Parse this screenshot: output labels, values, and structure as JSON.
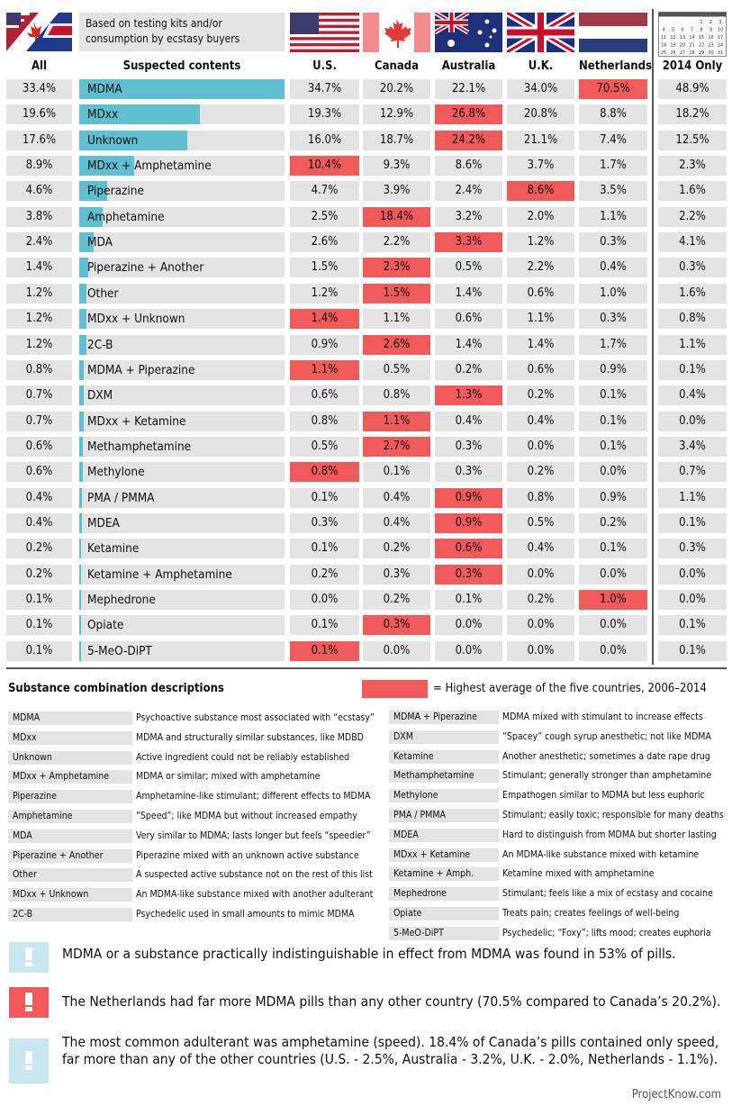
{
  "header": {
    "note": "Based on testing kits and/or consumption by ecstasy buyers",
    "col_all": "All",
    "col_contents": "Suspected contents",
    "col_2014": "2014 Only",
    "countries": [
      "U.S.",
      "Canada",
      "Australia",
      "U.K.",
      "Netherlands"
    ]
  },
  "chart_data": {
    "type": "table",
    "columns": [
      "All",
      "Suspected contents",
      "U.S.",
      "Canada",
      "Australia",
      "U.K.",
      "Netherlands",
      "2014 Only"
    ],
    "rows": [
      {
        "name": "MDMA",
        "all": 33.4,
        "us": 34.7,
        "ca": 20.2,
        "au": 22.1,
        "uk": 34.0,
        "nl": 70.5,
        "y2014": 48.9,
        "highest": "nl"
      },
      {
        "name": "MDxx",
        "all": 19.6,
        "us": 19.3,
        "ca": 12.9,
        "au": 26.8,
        "uk": 20.8,
        "nl": 8.8,
        "y2014": 18.2,
        "highest": "au"
      },
      {
        "name": "Unknown",
        "all": 17.6,
        "us": 16.0,
        "ca": 18.7,
        "au": 24.2,
        "uk": 21.1,
        "nl": 7.4,
        "y2014": 12.5,
        "highest": "au"
      },
      {
        "name": "MDxx + Amphetamine",
        "all": 8.9,
        "us": 10.4,
        "ca": 9.3,
        "au": 8.6,
        "uk": 3.7,
        "nl": 1.7,
        "y2014": 2.3,
        "highest": "us"
      },
      {
        "name": "Piperazine",
        "all": 4.6,
        "us": 4.7,
        "ca": 3.9,
        "au": 2.4,
        "uk": 8.6,
        "nl": 3.5,
        "y2014": 1.6,
        "highest": "uk"
      },
      {
        "name": "Amphetamine",
        "all": 3.8,
        "us": 2.5,
        "ca": 18.4,
        "au": 3.2,
        "uk": 2.0,
        "nl": 1.1,
        "y2014": 2.2,
        "highest": "ca"
      },
      {
        "name": "MDA",
        "all": 2.4,
        "us": 2.6,
        "ca": 2.2,
        "au": 3.3,
        "uk": 1.2,
        "nl": 0.3,
        "y2014": 4.1,
        "highest": "au"
      },
      {
        "name": "Piperazine + Another",
        "all": 1.4,
        "us": 1.5,
        "ca": 2.3,
        "au": 0.5,
        "uk": 2.2,
        "nl": 0.4,
        "y2014": 0.3,
        "highest": "ca"
      },
      {
        "name": "Other",
        "all": 1.2,
        "us": 1.2,
        "ca": 1.5,
        "au": 1.4,
        "uk": 0.6,
        "nl": 1.0,
        "y2014": 1.6,
        "highest": "ca"
      },
      {
        "name": "MDxx + Unknown",
        "all": 1.2,
        "us": 1.4,
        "ca": 1.1,
        "au": 0.6,
        "uk": 1.1,
        "nl": 0.3,
        "y2014": 0.8,
        "highest": "us"
      },
      {
        "name": "2C-B",
        "all": 1.2,
        "us": 0.9,
        "ca": 2.6,
        "au": 1.4,
        "uk": 1.4,
        "nl": 1.7,
        "y2014": 1.1,
        "highest": "ca"
      },
      {
        "name": "MDMA + Piperazine",
        "all": 0.8,
        "us": 1.1,
        "ca": 0.5,
        "au": 0.2,
        "uk": 0.6,
        "nl": 0.9,
        "y2014": 0.1,
        "highest": "us"
      },
      {
        "name": "DXM",
        "all": 0.7,
        "us": 0.6,
        "ca": 0.8,
        "au": 1.3,
        "uk": 0.2,
        "nl": 0.1,
        "y2014": 0.4,
        "highest": "au"
      },
      {
        "name": "MDxx + Ketamine",
        "all": 0.7,
        "us": 0.8,
        "ca": 1.1,
        "au": 0.4,
        "uk": 0.4,
        "nl": 0.1,
        "y2014": 0.0,
        "highest": "ca"
      },
      {
        "name": "Methamphetamine",
        "all": 0.6,
        "us": 0.5,
        "ca": 2.7,
        "au": 0.3,
        "uk": 0.0,
        "nl": 0.1,
        "y2014": 3.4,
        "highest": "ca"
      },
      {
        "name": "Methylone",
        "all": 0.6,
        "us": 0.8,
        "ca": 0.1,
        "au": 0.3,
        "uk": 0.2,
        "nl": 0.0,
        "y2014": 0.7,
        "highest": "us"
      },
      {
        "name": "PMA / PMMA",
        "all": 0.4,
        "us": 0.1,
        "ca": 0.4,
        "au": 0.9,
        "uk": 0.8,
        "nl": 0.9,
        "y2014": 1.1,
        "highest": "au"
      },
      {
        "name": "MDEA",
        "all": 0.4,
        "us": 0.3,
        "ca": 0.4,
        "au": 0.9,
        "uk": 0.5,
        "nl": 0.2,
        "y2014": 0.1,
        "highest": "au"
      },
      {
        "name": "Ketamine",
        "all": 0.2,
        "us": 0.1,
        "ca": 0.2,
        "au": 0.6,
        "uk": 0.4,
        "nl": 0.1,
        "y2014": 0.3,
        "highest": "au"
      },
      {
        "name": "Ketamine + Amphetamine",
        "all": 0.2,
        "us": 0.2,
        "ca": 0.3,
        "au": 0.3,
        "uk": 0.0,
        "nl": 0.0,
        "y2014": 0.0,
        "highest": "au"
      },
      {
        "name": "Mephedrone",
        "all": 0.1,
        "us": 0.0,
        "ca": 0.2,
        "au": 0.1,
        "uk": 0.2,
        "nl": 1.0,
        "y2014": 0.0,
        "highest": "nl"
      },
      {
        "name": "Opiate",
        "all": 0.1,
        "us": 0.1,
        "ca": 0.3,
        "au": 0.0,
        "uk": 0.0,
        "nl": 0.0,
        "y2014": 0.1,
        "highest": "ca"
      },
      {
        "name": "5-MeO-DiPT",
        "all": 0.1,
        "us": 0.1,
        "ca": 0.0,
        "au": 0.0,
        "uk": 0.0,
        "nl": 0.0,
        "y2014": 0.1,
        "highest": "us"
      }
    ],
    "bar_max": 33.4
  },
  "colors": {
    "highlight": "#f05a5a",
    "bar": "#5fbfd0",
    "cell": "#e3e3e3",
    "note_light": "#c7e6ee"
  },
  "legend": {
    "title": "Substance combination descriptions",
    "highlight_text": "= Highest average of the five countries, 2006–2014"
  },
  "descriptions_left": [
    {
      "label": "MDMA",
      "desc": "Psychoactive substance most associated with “ecstasy”"
    },
    {
      "label": "MDxx",
      "desc": "MDMA and structurally similar substances, like MDBD"
    },
    {
      "label": "Unknown",
      "desc": "Active ingredient could not be reliably established"
    },
    {
      "label": "MDxx + Amphetamine",
      "desc": "MDMA or similar; mixed with amphetamine"
    },
    {
      "label": "Piperazine",
      "desc": "Amphetamine-like stimulant; different effects to MDMA"
    },
    {
      "label": "Amphetamine",
      "desc": "“Speed”; like MDMA but without increased empathy"
    },
    {
      "label": "MDA",
      "desc": "Very similar to MDMA; lasts longer but feels “speedier”"
    },
    {
      "label": "Piperazine + Another",
      "desc": "Piperazine mixed with an unknown active substance"
    },
    {
      "label": "Other",
      "desc": "A suspected active substance not on the rest of this list"
    },
    {
      "label": "MDxx + Unknown",
      "desc": "An MDMA-like substance mixed with another adulterant"
    },
    {
      "label": "2C-B",
      "desc": "Psychedelic used in small amounts to mimic MDMA"
    }
  ],
  "descriptions_right": [
    {
      "label": "MDMA + Piperazine",
      "desc": "MDMA mixed with stimulant to increase effects"
    },
    {
      "label": "DXM",
      "desc": "“Spacey” cough syrup anesthetic; not like MDMA"
    },
    {
      "label": "Ketamine",
      "desc": "Another anesthetic; sometimes a date rape drug"
    },
    {
      "label": "Methamphetamine",
      "desc": "Stimulant; generally stronger than amphetamine"
    },
    {
      "label": "Methylone",
      "desc": "Empathogen similar to MDMA but less euphoric"
    },
    {
      "label": "PMA / PMMA",
      "desc": "Stimulant; easily toxic; responsible for many deaths"
    },
    {
      "label": "MDEA",
      "desc": "Hard to distinguish from MDMA but shorter lasting"
    },
    {
      "label": "MDxx + Ketamine",
      "desc": "An MDMA-like substance mixed with ketamine"
    },
    {
      "label": "Ketamine + Amph.",
      "desc": "Ketamine mixed with amphetamine"
    },
    {
      "label": "Mephedrone",
      "desc": "Stimulant; feels like a mix of ecstasy and cocaine"
    },
    {
      "label": "Opiate",
      "desc": "Treats pain; creates feelings of well-being"
    },
    {
      "label": "5-MeO-DiPT",
      "desc": "Psychedelic; “Foxy”; lifts mood; creates euphoria"
    }
  ],
  "notes": [
    {
      "text": "MDMA or a substance practically indistinguishable in effect from MDMA was found in 53% of pills.",
      "icon": "exclamation-icon",
      "style": "light"
    },
    {
      "text": "The Netherlands had far more MDMA pills than any other country (70.5% compared to Canada’s 20.2%).",
      "icon": "exclamation-icon",
      "style": "red"
    },
    {
      "text": "The most common adulterant was amphetamine (speed). 18.4% of Canada’s pills contained only speed, far more than any of the other countries (U.S. - 2.5%,  Australia - 3.2%, U.K. - 2.0%, Netherlands - 1.1%).",
      "icon": "exclamation-icon",
      "style": "light"
    }
  ],
  "calendar": {
    "numbers": [
      "1",
      "2",
      "3",
      "4",
      "5",
      "6",
      "7",
      "8",
      "9",
      "10",
      "11",
      "12",
      "13",
      "14",
      "15",
      "16",
      "17",
      "18",
      "19",
      "20",
      "21",
      "22",
      "23",
      "24",
      "25",
      "26",
      "27",
      "28",
      "29",
      "30",
      "31"
    ]
  },
  "footer": {
    "credit": "ProjectKnow.com"
  }
}
